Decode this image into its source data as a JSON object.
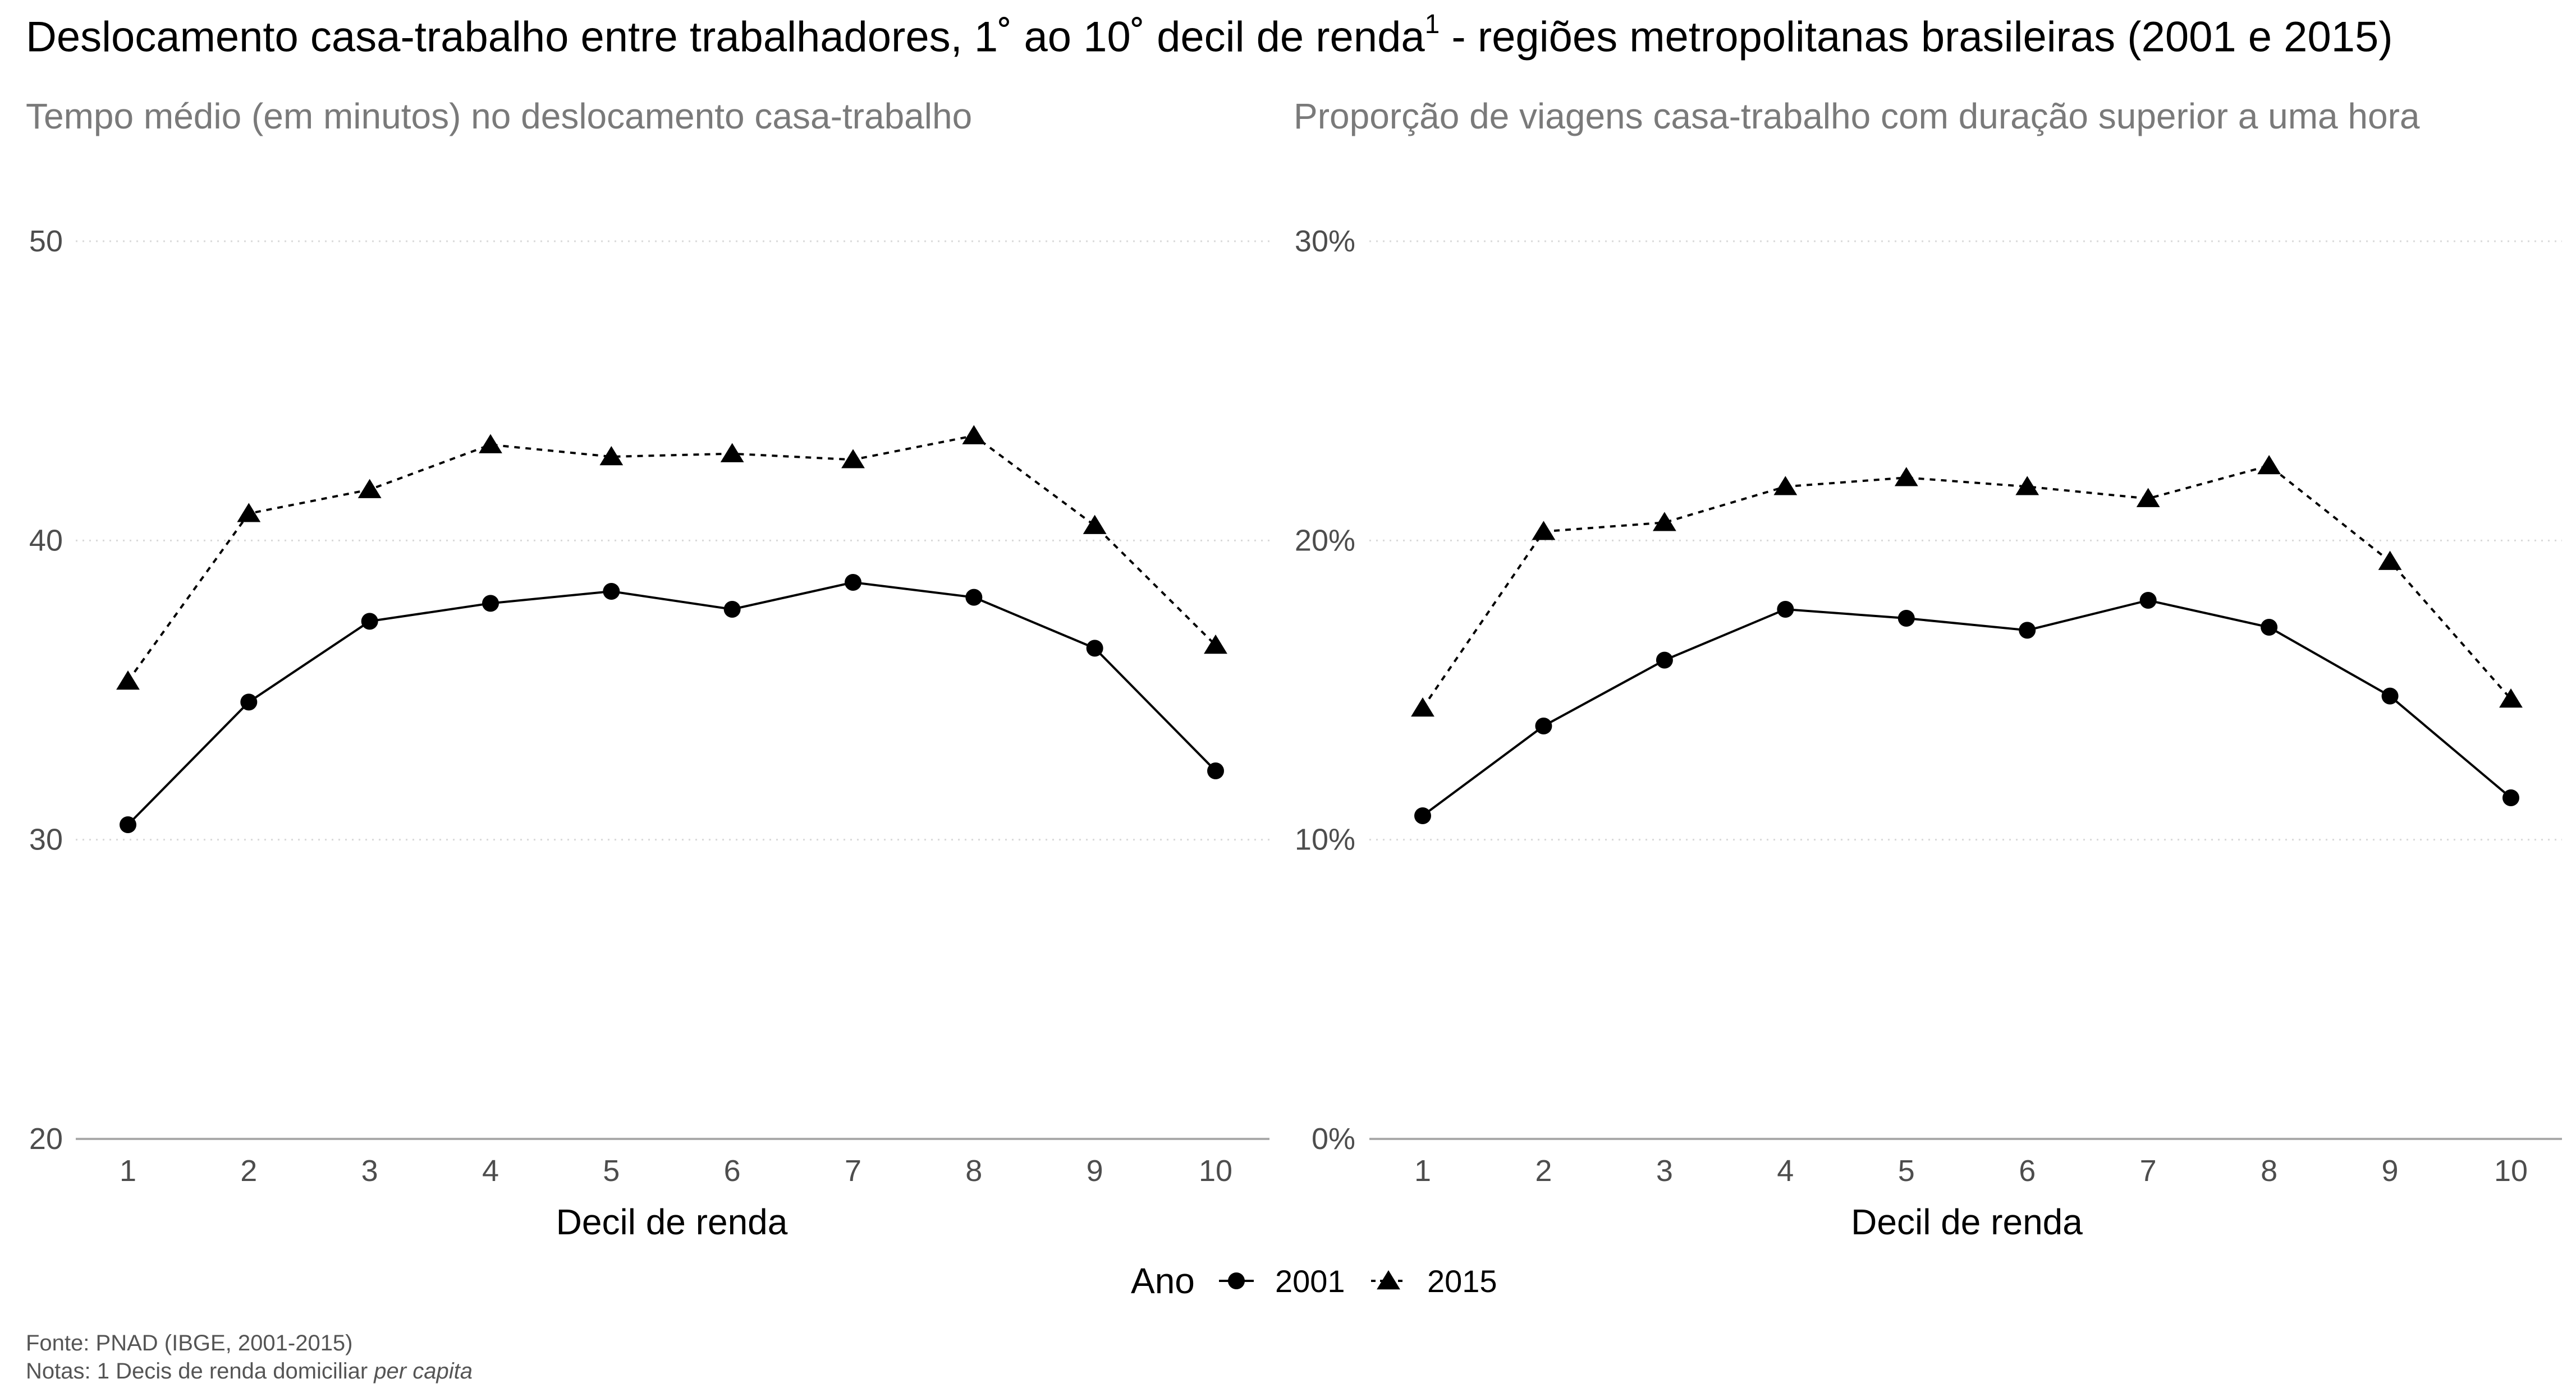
{
  "title": {
    "part1": "Deslocamento casa-trabalho entre trabalhadores, 1˚ ao 10˚ decil de renda",
    "sup": "1",
    "part2": " - regiões metropolitanas brasileiras (2001 e 2015)"
  },
  "chart_data": [
    {
      "type": "line",
      "title": "Tempo médio (em minutos) no deslocamento casa-trabalho",
      "xlabel": "Decil de renda",
      "ylabel": "",
      "x": [
        1,
        2,
        3,
        4,
        5,
        6,
        7,
        8,
        9,
        10
      ],
      "ylim": [
        20,
        50
      ],
      "yticks": [
        20,
        30,
        40,
        50
      ],
      "ytick_labels": [
        "20",
        "30",
        "40",
        "50"
      ],
      "grid": "horizontal dotted",
      "series": [
        {
          "name": "2001",
          "marker": "circle",
          "line": "solid",
          "values": [
            30.5,
            34.6,
            37.3,
            37.9,
            38.3,
            37.7,
            38.6,
            38.1,
            36.4,
            32.3
          ]
        },
        {
          "name": "2015",
          "marker": "triangle",
          "line": "dotted",
          "values": [
            35.3,
            40.9,
            41.7,
            43.2,
            42.8,
            42.9,
            42.7,
            43.5,
            40.5,
            36.5
          ]
        }
      ]
    },
    {
      "type": "line",
      "title": "Proporção de viagens casa-trabalho com duração superior a uma hora",
      "xlabel": "Decil de renda",
      "ylabel": "",
      "x": [
        1,
        2,
        3,
        4,
        5,
        6,
        7,
        8,
        9,
        10
      ],
      "ylim": [
        0,
        30
      ],
      "yticks": [
        0,
        10,
        20,
        30
      ],
      "ytick_labels": [
        "0%",
        "10%",
        "20%",
        "30%"
      ],
      "grid": "horizontal dotted",
      "series": [
        {
          "name": "2001",
          "marker": "circle",
          "line": "solid",
          "values": [
            10.8,
            13.8,
            16.0,
            17.7,
            17.4,
            17.0,
            18.0,
            17.1,
            14.8,
            11.4
          ]
        },
        {
          "name": "2015",
          "marker": "triangle",
          "line": "dotted",
          "values": [
            14.4,
            20.3,
            20.6,
            21.8,
            22.1,
            21.8,
            21.4,
            22.5,
            19.3,
            14.7
          ]
        }
      ]
    }
  ],
  "legend": {
    "title": "Ano",
    "items": [
      {
        "label": "2001",
        "marker": "circle",
        "line": "solid"
      },
      {
        "label": "2015",
        "marker": "triangle",
        "line": "dotted"
      }
    ],
    "position": "bottom"
  },
  "footer": {
    "source": "Fonte: PNAD (IBGE, 2001-2015)",
    "notes_prefix": "Notas: 1 Decis de renda domiciliar ",
    "notes_italic": "per capita"
  },
  "colors": {
    "line": "#000000",
    "grid": "#d9d9d9",
    "axis": "#aaaaaa",
    "tick_text": "#4d4d4d",
    "subtitle": "#7a7a7a"
  }
}
